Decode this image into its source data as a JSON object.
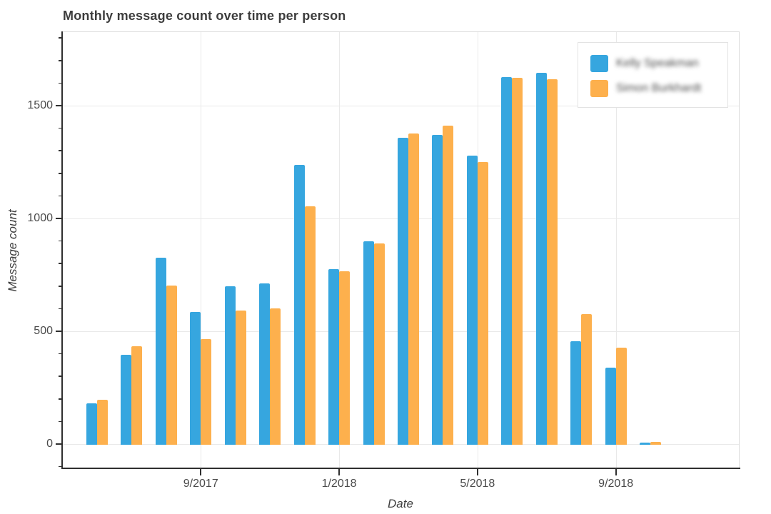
{
  "palette": {
    "series_blue": "#36A6DF",
    "series_orange": "#FDB04D",
    "grid": "#e9e9e9",
    "spine": "#2f2f2f",
    "plot_border": "#dcdcdc",
    "tick_text": "#4a4a4a",
    "title_text": "#3d3d3d"
  },
  "chart_data": {
    "type": "bar",
    "title": "Monthly message count over time per person",
    "xlabel": "Date",
    "ylabel": "Message count",
    "categories": [
      "6/2017",
      "7/2017",
      "8/2017",
      "9/2017",
      "10/2017",
      "11/2017",
      "12/2017",
      "1/2018",
      "2/2018",
      "3/2018",
      "4/2018",
      "5/2018",
      "6/2018",
      "7/2018",
      "8/2018",
      "9/2018",
      "10/2018"
    ],
    "series": [
      {
        "name": "Kelly Speakman",
        "color": "#36A6DF",
        "values": [
          180,
          397,
          826,
          585,
          698,
          712,
          1236,
          774,
          900,
          1357,
          1370,
          1277,
          1627,
          1645,
          455,
          339,
          5
        ]
      },
      {
        "name": "Simon Burkhardt",
        "color": "#FDB04D",
        "values": [
          196,
          434,
          703,
          466,
          593,
          601,
          1053,
          767,
          889,
          1376,
          1411,
          1249,
          1624,
          1618,
          577,
          428,
          8
        ]
      }
    ],
    "x_tick_labels": [
      "9/2017",
      "1/2018",
      "5/2018",
      "9/2018"
    ],
    "y_tick_values": [
      0,
      500,
      1000,
      1500
    ],
    "y_minor_step": 100,
    "ylim": [
      -108,
      1829
    ],
    "grid": true,
    "legend_position": "top-right",
    "legend_text_blurred": true
  }
}
